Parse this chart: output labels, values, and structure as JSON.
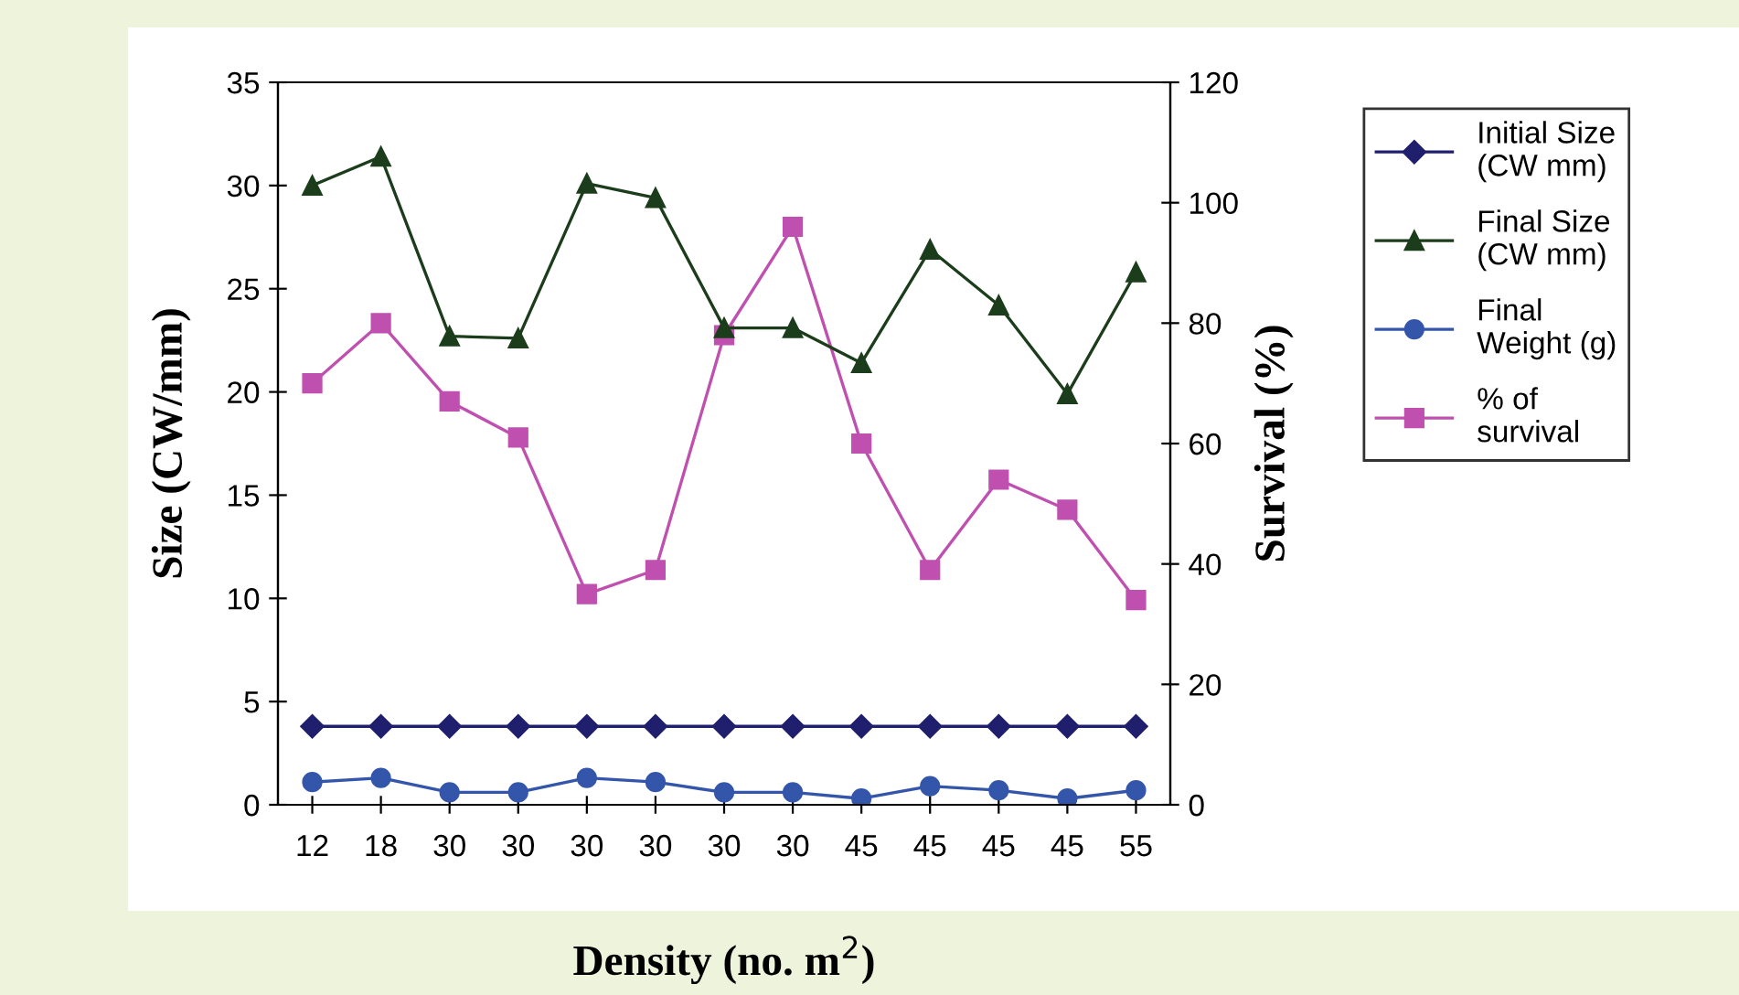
{
  "chart_data": {
    "type": "line",
    "xlabel": "Density (no. m$^{2}$)",
    "ylabel": "Size (CW/mm)",
    "y2label": "Survival (%)",
    "categories": [
      "12",
      "18",
      "30",
      "30",
      "30",
      "30",
      "30",
      "30",
      "45",
      "45",
      "45",
      "45",
      "55"
    ],
    "series": [
      {
        "name": "Initial Size (CW mm)",
        "color": "#1f1f6e",
        "marker": "diamond",
        "values": [
          3.8,
          3.8,
          3.8,
          3.8,
          3.8,
          3.8,
          3.8,
          3.8,
          3.8,
          3.8,
          3.8,
          3.8,
          3.8
        ]
      },
      {
        "name": "Final Size (CW mm)",
        "color": "#1b3d1b",
        "marker": "triangle",
        "values": [
          30.0,
          31.4,
          22.7,
          22.6,
          30.1,
          29.4,
          23.1,
          23.1,
          21.4,
          26.9,
          24.2,
          19.9,
          25.8
        ]
      },
      {
        "name": "Final Weight (g)",
        "color": "#3355aa",
        "marker": "circle",
        "values": [
          1.1,
          1.3,
          0.6,
          0.6,
          1.3,
          1.1,
          0.6,
          0.6,
          0.3,
          0.9,
          0.7,
          0.3,
          0.7
        ]
      },
      {
        "name": "% of survival",
        "color": "#c050b0",
        "marker": "square",
        "axis": "y2",
        "values": [
          70,
          80,
          67,
          61,
          35,
          39,
          78,
          96,
          60,
          39,
          54,
          49,
          34
        ]
      }
    ],
    "ylim": [
      0,
      35
    ],
    "yticks": [
      0,
      5,
      10,
      15,
      20,
      25,
      30,
      35
    ],
    "y2lim": [
      0,
      120
    ],
    "y2ticks": [
      0,
      20,
      40,
      60,
      80,
      100,
      120
    ],
    "grid": false,
    "legend": "right"
  }
}
